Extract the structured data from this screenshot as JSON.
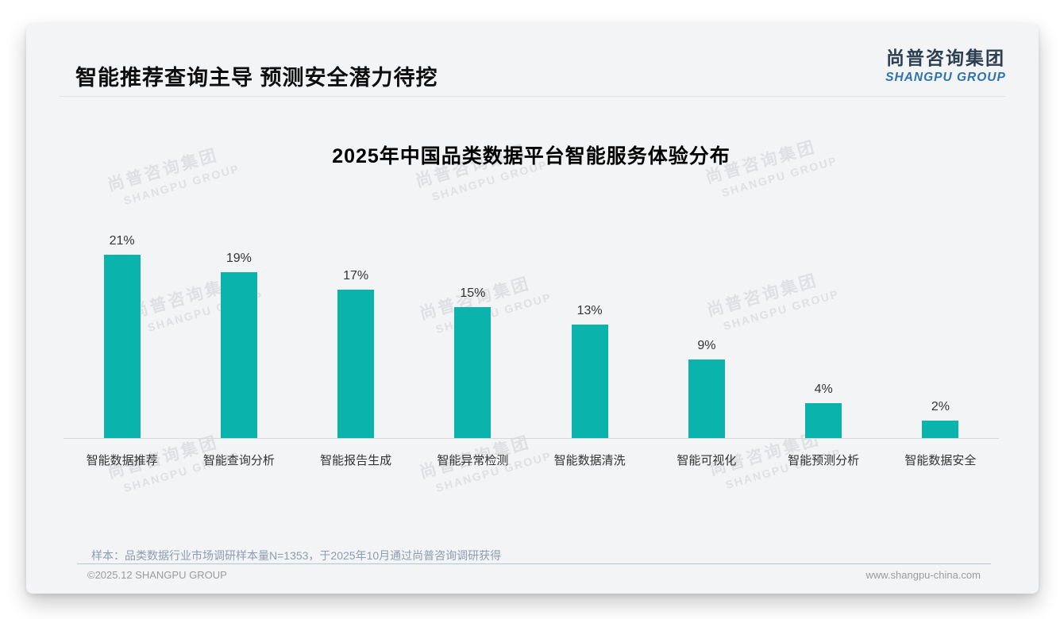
{
  "page": {
    "title": "智能推荐查询主导 预测安全潜力待挖",
    "logo": {
      "cn": "尚普咨询集团",
      "en": "SHANGPU GROUP"
    },
    "watermark": {
      "line1": "尚普咨询集团",
      "line2": "SHANGPU GROUP"
    },
    "note": "样本：品类数据行业市场调研样本量N=1353，于2025年10月通过尚普咨询调研获得",
    "footer": {
      "left": "©2025.12 SHANGPU GROUP",
      "right": "www.shangpu-china.com"
    }
  },
  "chart_data": {
    "type": "bar",
    "title": "2025年中国品类数据平台智能服务体验分布",
    "categories": [
      "智能数据推荐",
      "智能查询分析",
      "智能报告生成",
      "智能异常检测",
      "智能数据清洗",
      "智能可视化",
      "智能预测分析",
      "智能数据安全"
    ],
    "values": [
      21,
      19,
      17,
      15,
      13,
      9,
      4,
      2
    ],
    "unit": "%",
    "xlabel": "",
    "ylabel": "",
    "ylim": [
      0,
      22
    ],
    "grid": false,
    "legend": "none",
    "data_labels": true,
    "bar_color": "#0ab3ac",
    "axis_line_color": "#d8d8d8"
  }
}
